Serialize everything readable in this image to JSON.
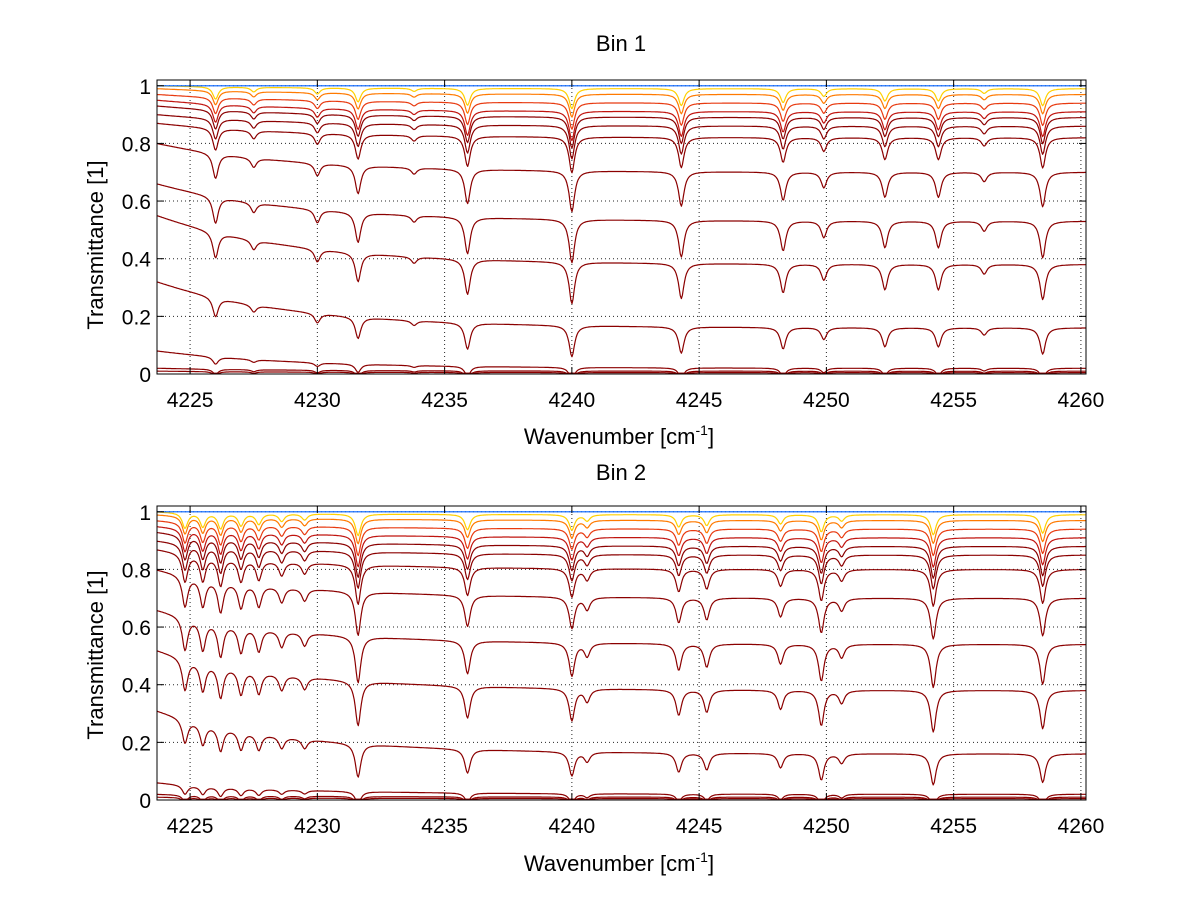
{
  "chart_data": [
    {
      "type": "line",
      "title": "Bin 1",
      "xlabel": "Wavenumber [cm",
      "xlabel_sup": "-1",
      "xlabel_end": "]",
      "ylabel": "Transmittance [1]",
      "xlim": [
        4223.7,
        4260.2
      ],
      "ylim": [
        0,
        1.02
      ],
      "grid": true,
      "xticks": [
        4225,
        4230,
        4235,
        4240,
        4245,
        4250,
        4255,
        4260
      ],
      "yticks": [
        0,
        0.2,
        0.4,
        0.6,
        0.8,
        1
      ],
      "ytick_labels": [
        "0",
        "0.2",
        "0.4",
        "0.6",
        "0.8",
        "1"
      ],
      "series_colors": [
        "#8b0000",
        "#c0140f",
        "#e83a10",
        "#ff7a00",
        "#ffd000",
        "#0060ff"
      ],
      "series_start": [
        0.01,
        0.02,
        0.08,
        0.32,
        0.55,
        0.66,
        0.8,
        0.87,
        0.9,
        0.93,
        0.95,
        0.97,
        0.99,
        1.0
      ],
      "series_baseline": [
        0.005,
        0.01,
        0.02,
        0.16,
        0.38,
        0.53,
        0.7,
        0.82,
        0.86,
        0.89,
        0.91,
        0.94,
        0.97,
        0.99
      ],
      "absorption_lines": [
        {
          "x": 4226.0,
          "depth": 0.08
        },
        {
          "x": 4227.5,
          "depth": 0.03
        },
        {
          "x": 4230.0,
          "depth": 0.04
        },
        {
          "x": 4231.6,
          "depth": 0.09
        },
        {
          "x": 4233.8,
          "depth": 0.02
        },
        {
          "x": 4235.9,
          "depth": 0.11
        },
        {
          "x": 4240.0,
          "depth": 0.13
        },
        {
          "x": 4244.3,
          "depth": 0.11
        },
        {
          "x": 4248.3,
          "depth": 0.09
        },
        {
          "x": 4249.9,
          "depth": 0.05
        },
        {
          "x": 4252.3,
          "depth": 0.08
        },
        {
          "x": 4254.4,
          "depth": 0.08
        },
        {
          "x": 4256.2,
          "depth": 0.03
        },
        {
          "x": 4258.5,
          "depth": 0.11
        }
      ]
    },
    {
      "type": "line",
      "title": "Bin 2",
      "xlabel": "Wavenumber [cm",
      "xlabel_sup": "-1",
      "xlabel_end": "]",
      "ylabel": "Transmittance [1]",
      "xlim": [
        4223.7,
        4260.2
      ],
      "ylim": [
        0,
        1.02
      ],
      "grid": true,
      "xticks": [
        4225,
        4230,
        4235,
        4240,
        4245,
        4250,
        4255,
        4260
      ],
      "yticks": [
        0,
        0.2,
        0.4,
        0.6,
        0.8,
        1
      ],
      "ytick_labels": [
        "0",
        "0.2",
        "0.4",
        "0.6",
        "0.8",
        "1"
      ],
      "series_colors": [
        "#8b0000",
        "#c0140f",
        "#e83a10",
        "#ff7a00",
        "#ffd000",
        "#0060ff"
      ],
      "series_start": [
        0.01,
        0.02,
        0.06,
        0.31,
        0.52,
        0.66,
        0.8,
        0.87,
        0.9,
        0.93,
        0.95,
        0.97,
        0.99,
        1.0
      ],
      "series_baseline": [
        0.005,
        0.01,
        0.02,
        0.16,
        0.38,
        0.54,
        0.7,
        0.8,
        0.85,
        0.88,
        0.91,
        0.94,
        0.97,
        0.99
      ],
      "absorption_lines": [
        {
          "x": 4224.8,
          "depth": 0.1
        },
        {
          "x": 4225.5,
          "depth": 0.09
        },
        {
          "x": 4226.2,
          "depth": 0.1
        },
        {
          "x": 4227.0,
          "depth": 0.08
        },
        {
          "x": 4227.7,
          "depth": 0.07
        },
        {
          "x": 4228.6,
          "depth": 0.05
        },
        {
          "x": 4229.5,
          "depth": 0.04
        },
        {
          "x": 4231.6,
          "depth": 0.14
        },
        {
          "x": 4235.9,
          "depth": 0.1
        },
        {
          "x": 4240.0,
          "depth": 0.1
        },
        {
          "x": 4240.6,
          "depth": 0.04
        },
        {
          "x": 4244.2,
          "depth": 0.08
        },
        {
          "x": 4245.3,
          "depth": 0.07
        },
        {
          "x": 4248.2,
          "depth": 0.06
        },
        {
          "x": 4249.8,
          "depth": 0.11
        },
        {
          "x": 4250.6,
          "depth": 0.04
        },
        {
          "x": 4254.2,
          "depth": 0.13
        },
        {
          "x": 4258.5,
          "depth": 0.12
        }
      ]
    }
  ]
}
